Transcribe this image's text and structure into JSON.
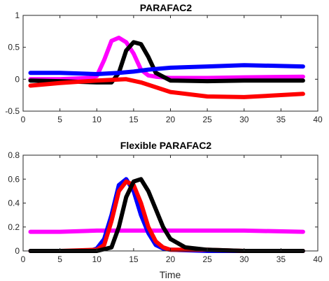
{
  "chart_data": [
    {
      "type": "line",
      "title": "PARAFAC2",
      "xlabel": "",
      "ylabel": "",
      "xlim": [
        0,
        40
      ],
      "ylim": [
        -0.5,
        1
      ],
      "xticks": [
        0,
        5,
        10,
        15,
        20,
        25,
        30,
        35,
        40
      ],
      "yticks": [
        -0.5,
        0,
        0.5,
        1
      ],
      "ytick_labels": [
        "-0.5",
        "0",
        "0.5",
        "1"
      ],
      "grid": false,
      "series": [
        {
          "color": "#ff00ff",
          "values_x": [
            1,
            5,
            9,
            10,
            11,
            12,
            13,
            14,
            15,
            16,
            17,
            18,
            20,
            25,
            30,
            38
          ],
          "values_y": [
            0.0,
            0.0,
            0.02,
            0.05,
            0.3,
            0.6,
            0.65,
            0.58,
            0.4,
            0.15,
            0.06,
            0.04,
            0.02,
            0.02,
            0.03,
            0.04
          ]
        },
        {
          "color": "#000000",
          "values_x": [
            1,
            5,
            10,
            12,
            13,
            14,
            15,
            16,
            17,
            18,
            20,
            25,
            30,
            38
          ],
          "values_y": [
            -0.02,
            -0.03,
            -0.05,
            -0.05,
            0.1,
            0.45,
            0.58,
            0.55,
            0.35,
            0.1,
            -0.02,
            -0.03,
            -0.02,
            -0.02
          ]
        },
        {
          "color": "#0000ff",
          "values_x": [
            1,
            5,
            10,
            13,
            15,
            17,
            20,
            25,
            30,
            38
          ],
          "values_y": [
            0.1,
            0.1,
            0.08,
            0.1,
            0.12,
            0.15,
            0.18,
            0.2,
            0.22,
            0.2
          ]
        },
        {
          "color": "#ff0000",
          "values_x": [
            1,
            5,
            10,
            14,
            16,
            20,
            25,
            30,
            38
          ],
          "values_y": [
            -0.1,
            -0.06,
            -0.02,
            0.0,
            -0.05,
            -0.2,
            -0.27,
            -0.28,
            -0.23
          ]
        }
      ]
    },
    {
      "type": "line",
      "title": "Flexible PARAFAC2",
      "xlabel": "Time",
      "ylabel": "",
      "xlim": [
        0,
        40
      ],
      "ylim": [
        0,
        0.8
      ],
      "xticks": [
        0,
        5,
        10,
        15,
        20,
        25,
        30,
        35,
        40
      ],
      "yticks": [
        0,
        0.2,
        0.4,
        0.6,
        0.8
      ],
      "ytick_labels": [
        "0",
        "0.2",
        "0.4",
        "0.6",
        "0.8"
      ],
      "grid": false,
      "series": [
        {
          "color": "#ff00ff",
          "values_x": [
            1,
            5,
            10,
            15,
            20,
            25,
            30,
            38
          ],
          "values_y": [
            0.16,
            0.16,
            0.17,
            0.17,
            0.17,
            0.17,
            0.17,
            0.16
          ]
        },
        {
          "color": "#0000ff",
          "values_x": [
            1,
            5,
            9,
            10,
            11,
            12,
            13,
            14,
            15,
            16,
            17,
            18,
            19,
            20,
            25,
            30,
            38
          ],
          "values_y": [
            0.0,
            0.0,
            0.0,
            0.02,
            0.1,
            0.3,
            0.55,
            0.6,
            0.5,
            0.3,
            0.15,
            0.05,
            0.02,
            0.01,
            0.0,
            0.0,
            0.0
          ]
        },
        {
          "color": "#ff0000",
          "values_x": [
            1,
            5,
            10,
            11,
            12,
            13,
            14,
            15,
            16,
            17,
            18,
            19,
            20,
            25,
            30,
            38
          ],
          "values_y": [
            0.0,
            0.0,
            0.01,
            0.05,
            0.25,
            0.5,
            0.58,
            0.55,
            0.4,
            0.2,
            0.08,
            0.03,
            0.01,
            0.01,
            0.0,
            0.0
          ]
        },
        {
          "color": "#000000",
          "values_x": [
            1,
            5,
            10,
            12,
            13,
            14,
            15,
            16,
            17,
            18,
            19,
            20,
            22,
            25,
            30,
            38
          ],
          "values_y": [
            0.0,
            0.0,
            0.0,
            0.03,
            0.2,
            0.45,
            0.58,
            0.6,
            0.5,
            0.35,
            0.2,
            0.1,
            0.03,
            0.01,
            0.0,
            0.0
          ]
        }
      ]
    }
  ]
}
